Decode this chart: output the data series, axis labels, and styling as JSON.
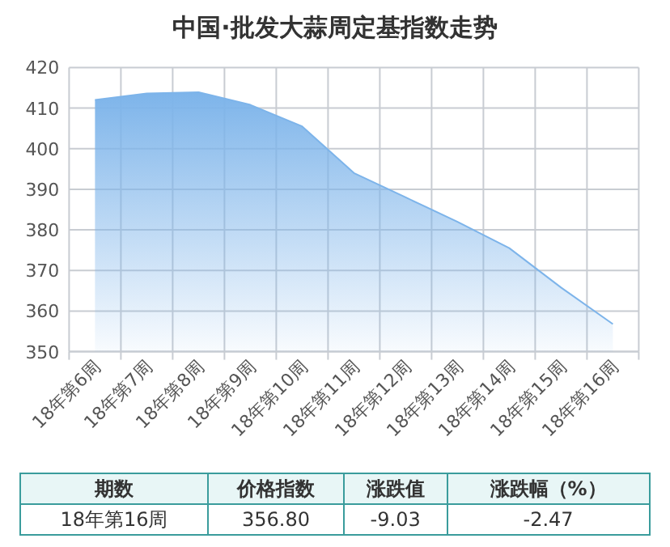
{
  "chart_data": {
    "type": "area",
    "title": "中国·批发大蒜周定基指数走势",
    "categories": [
      "18年第6周",
      "18年第7周",
      "18年第8周",
      "18年第9周",
      "18年第10周",
      "18年第11周",
      "18年第12周",
      "18年第13周",
      "18年第14周",
      "18年第15周",
      "18年第16周"
    ],
    "values": [
      412,
      413.6,
      413.9,
      410.8,
      405.5,
      394,
      388,
      382,
      375.5,
      365.8,
      356.8
    ],
    "color": "#7db4ea",
    "ylim": [
      350,
      420
    ],
    "yticks": [
      350,
      360,
      370,
      380,
      390,
      400,
      410,
      420
    ],
    "grid": true,
    "annotations": [
      "期数",
      "价格指数",
      "涨跌值",
      "涨跌幅（%）",
      "18年第16周",
      "356.80",
      "-9.03",
      "-2.47"
    ]
  }
}
